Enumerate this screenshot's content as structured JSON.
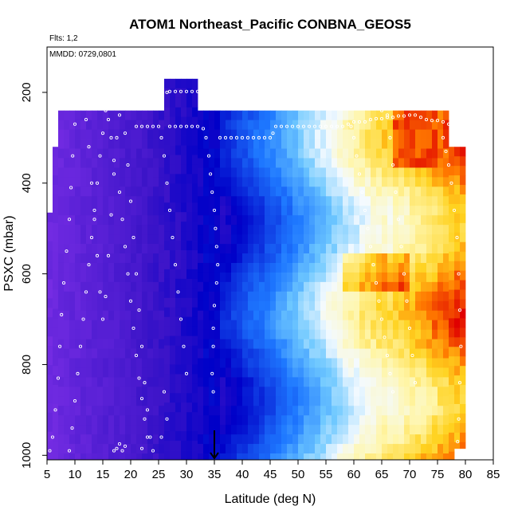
{
  "chart_data": {
    "type": "heatmap",
    "title": "ATOM1 Northeast_Pacific CONBNA_GEOS5",
    "flights_label": "Flts: 1,2",
    "dates_label": "MMDD: 0729,0801",
    "xlabel": "Latitude (deg N)",
    "ylabel": "PSXC (mbar)",
    "xlim": [
      5,
      85
    ],
    "ylim": [
      1010,
      100
    ],
    "x_ticks": [
      "5",
      "10",
      "15",
      "20",
      "25",
      "30",
      "35",
      "40",
      "45",
      "50",
      "55",
      "60",
      "65",
      "70",
      "75",
      "80",
      "85"
    ],
    "y_ticks": [
      "200",
      "400",
      "600",
      "800",
      "1000"
    ],
    "x_tick_values": [
      5,
      10,
      15,
      20,
      25,
      30,
      35,
      40,
      45,
      50,
      55,
      60,
      65,
      70,
      75,
      80,
      85
    ],
    "y_tick_values": [
      200,
      400,
      600,
      800,
      1000
    ],
    "marker_latitude": 35,
    "colors": {
      "purple": "#7b2fe6",
      "blue": "#0000c8",
      "light_blue": "#3fa9ff",
      "pale": "#f4faff",
      "yellow": "#ffd21f",
      "red": "#e00000",
      "point": "#ffffff",
      "frame": "#000000"
    },
    "flight_track": [
      [
        5.5,
        990
      ],
      [
        6,
        960
      ],
      [
        6.5,
        900
      ],
      [
        7,
        830
      ],
      [
        7.3,
        760
      ],
      [
        7.6,
        690
      ],
      [
        8,
        620
      ],
      [
        8.5,
        550
      ],
      [
        9,
        480
      ],
      [
        9.3,
        410
      ],
      [
        9.6,
        340
      ],
      [
        10,
        270
      ],
      [
        10.5,
        235
      ],
      [
        11.5,
        235
      ],
      [
        12,
        260
      ],
      [
        12.5,
        320
      ],
      [
        13,
        400
      ],
      [
        13.5,
        480
      ],
      [
        14,
        560
      ],
      [
        14.5,
        640
      ],
      [
        15,
        700
      ],
      [
        15.5,
        650
      ],
      [
        16,
        560
      ],
      [
        16.5,
        470
      ],
      [
        17,
        380
      ],
      [
        17.5,
        300
      ],
      [
        18,
        250
      ],
      [
        19,
        290
      ],
      [
        19.5,
        360
      ],
      [
        20,
        440
      ],
      [
        20.5,
        520
      ],
      [
        21,
        600
      ],
      [
        21.5,
        680
      ],
      [
        22,
        760
      ],
      [
        22.5,
        840
      ],
      [
        23,
        900
      ],
      [
        23.5,
        960
      ],
      [
        24,
        990
      ],
      [
        9,
        990
      ],
      [
        9.5,
        940
      ],
      [
        10,
        880
      ],
      [
        10.5,
        820
      ],
      [
        11,
        760
      ],
      [
        11.5,
        700
      ],
      [
        12,
        640
      ],
      [
        12.5,
        580
      ],
      [
        13,
        520
      ],
      [
        13.5,
        460
      ],
      [
        14,
        400
      ],
      [
        14.5,
        340
      ],
      [
        15,
        290
      ],
      [
        15.5,
        240
      ],
      [
        16,
        260
      ],
      [
        16.5,
        300
      ],
      [
        17,
        350
      ],
      [
        18,
        420
      ],
      [
        18.5,
        480
      ],
      [
        19,
        540
      ],
      [
        19.5,
        600
      ],
      [
        20,
        660
      ],
      [
        20.5,
        720
      ],
      [
        21,
        780
      ],
      [
        21.5,
        830
      ],
      [
        22,
        875
      ],
      [
        22.5,
        920
      ],
      [
        23,
        960
      ],
      [
        17,
        990
      ],
      [
        17.5,
        985
      ],
      [
        18,
        975
      ],
      [
        18.5,
        990
      ],
      [
        19,
        980
      ],
      [
        22,
        985
      ],
      [
        21,
        275
      ],
      [
        22,
        275
      ],
      [
        23,
        275
      ],
      [
        24,
        275
      ],
      [
        25,
        275
      ],
      [
        25.5,
        300
      ],
      [
        26,
        340
      ],
      [
        26.5,
        400
      ],
      [
        27,
        460
      ],
      [
        27.5,
        520
      ],
      [
        28,
        580
      ],
      [
        28.5,
        640
      ],
      [
        29,
        700
      ],
      [
        29.5,
        760
      ],
      [
        30,
        820
      ],
      [
        26,
        860
      ],
      [
        26.5,
        920
      ],
      [
        25.5,
        960
      ],
      [
        26.5,
        200
      ],
      [
        27,
        198
      ],
      [
        28,
        198
      ],
      [
        29,
        198
      ],
      [
        30,
        198
      ],
      [
        31,
        198
      ],
      [
        32,
        198
      ],
      [
        33,
        198
      ],
      [
        27,
        275
      ],
      [
        28,
        275
      ],
      [
        29,
        275
      ],
      [
        30,
        275
      ],
      [
        31,
        275
      ],
      [
        32,
        275
      ],
      [
        33,
        280
      ],
      [
        33.5,
        300
      ],
      [
        34,
        340
      ],
      [
        34.3,
        380
      ],
      [
        34.6,
        420
      ],
      [
        35,
        460
      ],
      [
        35.2,
        500
      ],
      [
        35.4,
        540
      ],
      [
        35.6,
        580
      ],
      [
        35.4,
        620
      ],
      [
        35,
        670
      ],
      [
        34.8,
        720
      ],
      [
        34.8,
        760
      ],
      [
        34.6,
        820
      ],
      [
        34.8,
        860
      ],
      [
        36,
        300
      ],
      [
        37,
        300
      ],
      [
        38,
        300
      ],
      [
        39,
        300
      ],
      [
        40,
        300
      ],
      [
        41,
        300
      ],
      [
        42,
        300
      ],
      [
        43,
        300
      ],
      [
        44,
        300
      ],
      [
        45,
        300
      ],
      [
        45.5,
        290
      ],
      [
        46,
        275
      ],
      [
        47,
        275
      ],
      [
        48,
        275
      ],
      [
        49,
        275
      ],
      [
        50,
        275
      ],
      [
        51,
        275
      ],
      [
        52,
        275
      ],
      [
        53,
        275
      ],
      [
        54,
        275
      ],
      [
        55,
        275
      ],
      [
        56,
        275
      ],
      [
        57,
        275
      ],
      [
        58,
        275
      ],
      [
        59,
        270
      ],
      [
        60,
        265
      ],
      [
        61,
        265
      ],
      [
        62,
        265
      ],
      [
        63,
        260
      ],
      [
        64,
        258
      ],
      [
        65,
        258
      ],
      [
        66,
        255
      ],
      [
        67,
        255
      ],
      [
        68,
        252
      ],
      [
        69,
        252
      ],
      [
        70,
        250
      ],
      [
        71,
        250
      ],
      [
        72,
        255
      ],
      [
        73,
        260
      ],
      [
        74,
        262
      ],
      [
        75,
        262
      ],
      [
        76,
        265
      ],
      [
        77,
        270
      ],
      [
        59.5,
        275
      ],
      [
        60,
        300
      ],
      [
        60.5,
        340
      ],
      [
        61,
        380
      ],
      [
        61.5,
        420
      ],
      [
        62,
        460
      ],
      [
        62.5,
        500
      ],
      [
        63,
        540
      ],
      [
        63.5,
        580
      ],
      [
        64,
        620
      ],
      [
        64.5,
        660
      ],
      [
        65,
        700
      ],
      [
        65.5,
        740
      ],
      [
        66,
        780
      ],
      [
        66.5,
        820
      ],
      [
        67,
        860
      ],
      [
        65,
        240
      ],
      [
        66,
        250
      ],
      [
        66.5,
        300
      ],
      [
        67,
        360
      ],
      [
        67.5,
        420
      ],
      [
        68,
        480
      ],
      [
        68.5,
        540
      ],
      [
        69,
        600
      ],
      [
        69.5,
        660
      ],
      [
        70,
        720
      ],
      [
        70.5,
        780
      ],
      [
        71,
        840
      ],
      [
        76,
        300
      ],
      [
        76.5,
        330
      ],
      [
        77,
        360
      ],
      [
        77.5,
        400
      ],
      [
        78,
        460
      ],
      [
        78.5,
        520
      ],
      [
        78.8,
        600
      ],
      [
        79,
        680
      ],
      [
        79.2,
        760
      ],
      [
        79,
        840
      ],
      [
        78.8,
        920
      ],
      [
        78.6,
        970
      ]
    ]
  }
}
